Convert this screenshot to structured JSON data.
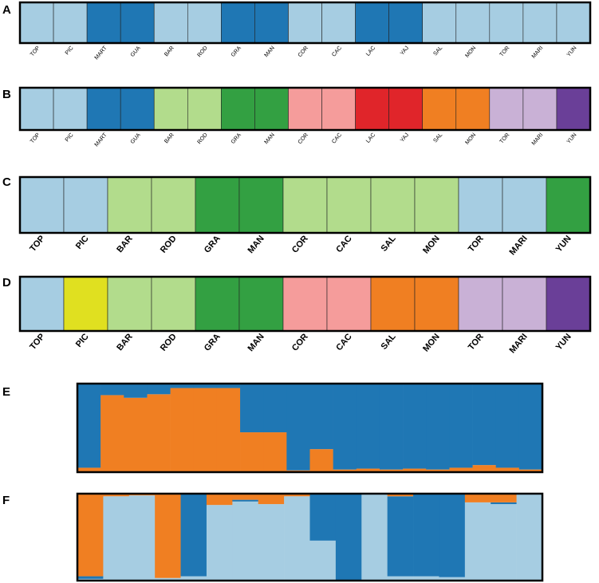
{
  "chart_data": [
    {
      "type": "structure",
      "title": "A",
      "ylim": [
        0,
        1
      ],
      "categories": [
        "TOP",
        "PIC",
        "MART",
        "GUA",
        "BAR",
        "ROD",
        "GRA",
        "MAN",
        "COR",
        "CAC",
        "LAC",
        "YAJ",
        "SAL",
        "MON",
        "TOR",
        "MARI",
        "YUN"
      ],
      "values": [
        1,
        1,
        1,
        1,
        1,
        1,
        1,
        1,
        1,
        1,
        1,
        1,
        1,
        1,
        1,
        1,
        1
      ],
      "colors": [
        "#a6cde2",
        "#a6cde2",
        "#1f77b4",
        "#1f77b4",
        "#a6cde2",
        "#a6cde2",
        "#1f77b4",
        "#1f77b4",
        "#a6cde2",
        "#a6cde2",
        "#1f77b4",
        "#1f77b4",
        "#a6cde2",
        "#a6cde2",
        "#a6cde2",
        "#a6cde2",
        "#a6cde2"
      ]
    },
    {
      "type": "structure",
      "title": "B",
      "ylim": [
        0,
        1
      ],
      "categories": [
        "TOP",
        "PIC",
        "MART",
        "GUA",
        "BAR",
        "ROD",
        "GRA",
        "MAN",
        "COR",
        "CAC",
        "LAC",
        "YAJ",
        "SAL",
        "MON",
        "TOR",
        "MARI",
        "YUN"
      ],
      "values": [
        1,
        1,
        1,
        1,
        1,
        1,
        1,
        1,
        1,
        1,
        1,
        1,
        1,
        1,
        1,
        1,
        1
      ],
      "colors": [
        "#a6cde2",
        "#a6cde2",
        "#1f77b4",
        "#1f77b4",
        "#b2dc8c",
        "#b2dc8c",
        "#33a042",
        "#33a042",
        "#f59c9b",
        "#f59c9b",
        "#e0252a",
        "#e0252a",
        "#f07f22",
        "#f07f22",
        "#c9b1d6",
        "#c9b1d6",
        "#6a3f98"
      ]
    },
    {
      "type": "structure",
      "title": "C",
      "ylim": [
        0,
        1
      ],
      "categories": [
        "TOP",
        "PIC",
        "BAR",
        "ROD",
        "GRA",
        "MAN",
        "COR",
        "CAC",
        "SAL",
        "MON",
        "TOR",
        "MARI",
        "YUN"
      ],
      "values": [
        1,
        1,
        1,
        1,
        1,
        1,
        1,
        1,
        1,
        1,
        1,
        1,
        1
      ],
      "colors": [
        "#a6cde2",
        "#a6cde2",
        "#b2dc8c",
        "#b2dc8c",
        "#33a042",
        "#33a042",
        "#b2dc8c",
        "#b2dc8c",
        "#b2dc8c",
        "#b2dc8c",
        "#a6cde2",
        "#a6cde2",
        "#33a042"
      ]
    },
    {
      "type": "structure",
      "title": "D",
      "ylim": [
        0,
        1
      ],
      "categories": [
        "TOP",
        "PIC",
        "BAR",
        "ROD",
        "GRA",
        "MAN",
        "COR",
        "CAC",
        "SAL",
        "MON",
        "TOR",
        "MARI",
        "YUN"
      ],
      "values": [
        1,
        1,
        1,
        1,
        1,
        1,
        1,
        1,
        1,
        1,
        1,
        1,
        1
      ],
      "colors": [
        "#a6cde2",
        "#e0e020",
        "#b2dc8c",
        "#b2dc8c",
        "#33a042",
        "#33a042",
        "#f59c9b",
        "#f59c9b",
        "#f07f22",
        "#f07f22",
        "#c9b1d6",
        "#c9b1d6",
        "#6a3f98"
      ]
    },
    {
      "type": "stacked",
      "title": "E",
      "ylim": [
        0,
        1
      ],
      "series": [
        {
          "color": "#f07f22",
          "values": [
            0.05,
            0.87,
            0.84,
            0.88,
            0.95,
            0.95,
            0.95,
            0.45,
            0.45,
            0.02,
            0.26,
            0.03,
            0.04,
            0.03,
            0.04,
            0.03,
            0.05,
            0.08,
            0.05,
            0.03
          ]
        },
        {
          "color": "#1f77b4",
          "values": [
            0.95,
            0.13,
            0.16,
            0.12,
            0.05,
            0.05,
            0.05,
            0.55,
            0.55,
            0.98,
            0.74,
            0.97,
            0.96,
            0.97,
            0.96,
            0.97,
            0.95,
            0.92,
            0.95,
            0.97
          ]
        }
      ]
    },
    {
      "type": "stacked",
      "title": "F",
      "ylim": [
        0,
        1
      ],
      "series": [
        {
          "color": "#a6cde2",
          "values": [
            0.02,
            0.97,
            0.98,
            0.03,
            0.05,
            0.87,
            0.91,
            0.88,
            0.97,
            0.46,
            0,
            1,
            0.05,
            0.05,
            0.04,
            0.9,
            0.88,
            1
          ]
        },
        {
          "color": "#1f77b4",
          "values": [
            0.03,
            0,
            0,
            0,
            0.95,
            0,
            0.02,
            0,
            0,
            0.54,
            1,
            0,
            0.92,
            0.95,
            0.96,
            0,
            0.02,
            0
          ]
        },
        {
          "color": "#f07f22",
          "values": [
            0.95,
            0.03,
            0.02,
            0.97,
            0,
            0.13,
            0.07,
            0.12,
            0.03,
            0,
            0,
            0,
            0.03,
            0,
            0,
            0.1,
            0.1,
            0
          ]
        }
      ]
    }
  ]
}
